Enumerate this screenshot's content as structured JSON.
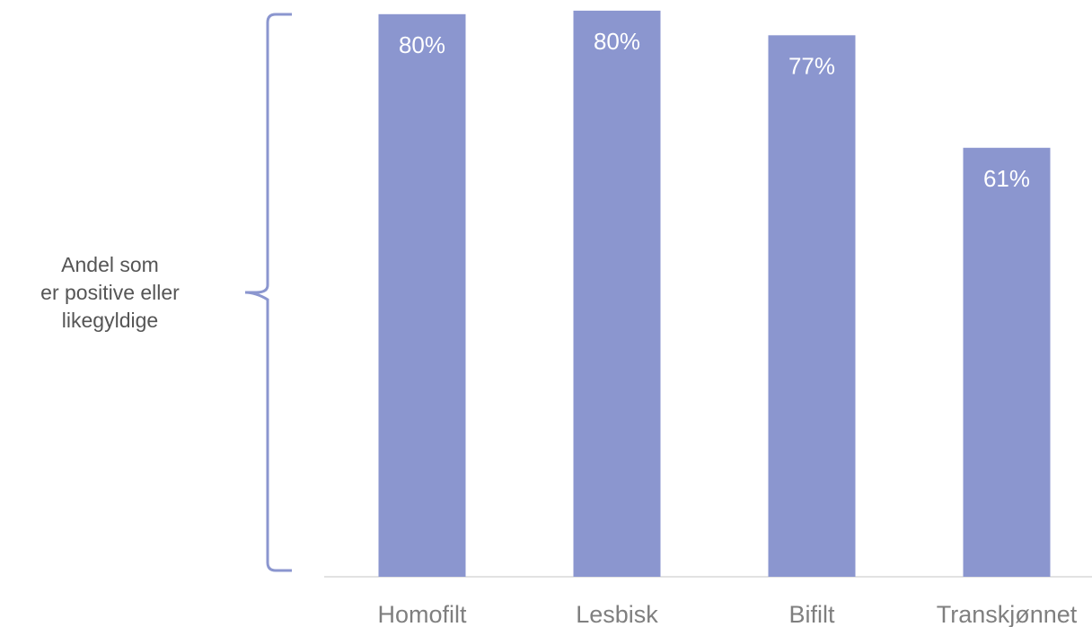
{
  "colors": {
    "bar": "#8b96cf",
    "bracket": "#8b96cf",
    "value_label": "#ffffff",
    "category_label": "#7f7f7f",
    "baseline": "#d9d9d9"
  },
  "bracket_label": {
    "line1": "Andel som",
    "line2": "er positive eller",
    "line3": "likegyldige"
  },
  "chart_data": {
    "type": "bar",
    "categories": [
      "Homofilt",
      "Lesbisk",
      "Bifilt",
      "Transkjønnet"
    ],
    "values": [
      80,
      80.5,
      77,
      61
    ],
    "value_labels": [
      "80%",
      "80%",
      "77%",
      "61%"
    ],
    "title": "",
    "xlabel": "",
    "ylabel": "",
    "ylim": [
      0,
      100
    ],
    "grid": false,
    "legend": "none",
    "bracket_annotation": "Andel som er positive eller likegyldige"
  }
}
